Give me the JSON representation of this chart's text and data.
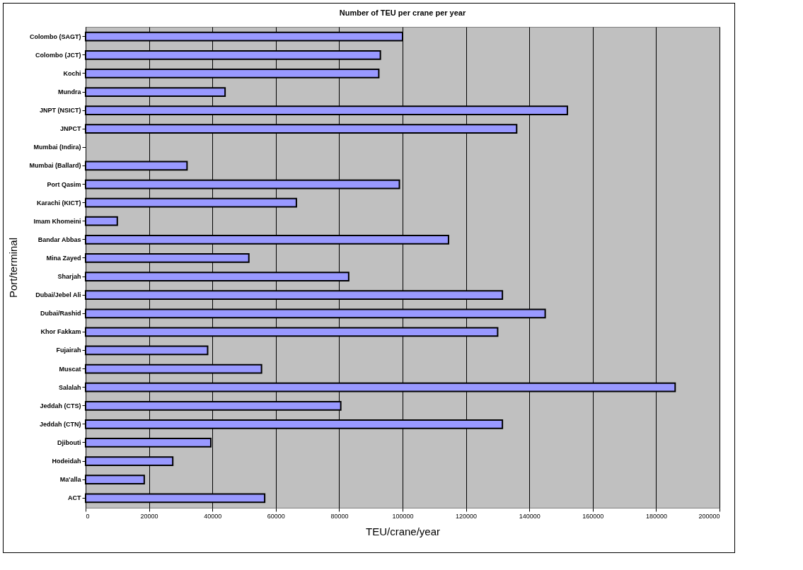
{
  "chart_data": {
    "type": "bar",
    "orientation": "horizontal",
    "title": "Number of TEU per crane per year",
    "xlabel": "TEU/crane/year",
    "ylabel": "Port/terminal",
    "categories": [
      "Colombo (SAGT)",
      "Colombo (JCT)",
      "Kochi",
      "Mundra",
      "JNPT (NSICT)",
      "JNPCT",
      "Mumbai (Indira)",
      "Mumbai (Ballard)",
      "Port Qasim",
      "Karachi (KICT)",
      "Imam Khomeini",
      "Bandar Abbas",
      "Mina Zayed",
      "Sharjah",
      "Dubai/Jebel Ali",
      "Dubai/Rashid",
      "Khor Fakkam",
      "Fujairah",
      "Muscat",
      "Salalah",
      "Jeddah (CTS)",
      "Jeddah (CTN)",
      "Djibouti",
      "Hodeidah",
      "Ma'alla",
      "ACT"
    ],
    "values": [
      100000,
      93000,
      92500,
      44000,
      152000,
      136000,
      null,
      32000,
      99000,
      66500,
      10000,
      114500,
      51500,
      83000,
      131500,
      145000,
      130000,
      38500,
      55500,
      186000,
      80500,
      131500,
      39500,
      27500,
      18500,
      56500
    ],
    "color": "#9999ff",
    "xlim": [
      0,
      200000
    ],
    "xticks": [
      0,
      20000,
      40000,
      60000,
      80000,
      100000,
      120000,
      140000,
      160000,
      180000,
      200000
    ],
    "grid": "x"
  }
}
